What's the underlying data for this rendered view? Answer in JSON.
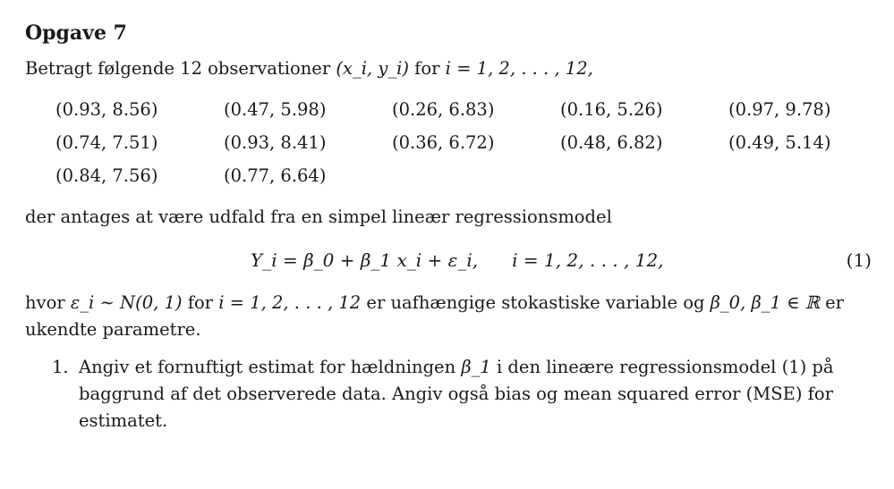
{
  "heading": "Opgave 7",
  "intro": {
    "text_before": "Betragt følgende 12 observationer ",
    "pair_notation": "(x_i, y_i)",
    "text_for": " for ",
    "index_range": "i = 1, 2, . . . , 12,"
  },
  "observations": [
    "(0.93, 8.56)",
    "(0.47, 5.98)",
    "(0.26, 6.83)",
    "(0.16, 5.26)",
    "(0.97, 9.78)",
    "(0.74, 7.51)",
    "(0.93, 8.41)",
    "(0.36, 6.72)",
    "(0.48, 6.82)",
    "(0.49, 5.14)",
    "(0.84, 7.56)",
    "(0.77, 6.64)"
  ],
  "model_intro": "der antages at være udfald fra en simpel lineær regressionsmodel",
  "equation": {
    "lhs": "Y_i = β_0 + β_1 x_i + ε_i,",
    "range": "i = 1, 2, . . . , 12,",
    "number": "(1)"
  },
  "assumptions": {
    "hvor": "hvor ",
    "epsilon_dist": "ε_i ∼ N(0, 1)",
    "for": " for ",
    "range": "i = 1, 2, . . . , 12",
    "middle": " er uafhængige stokastiske variable og ",
    "params": "β_0, β_1 ∈ ℝ",
    "end": " er ukendte parametre."
  },
  "task": {
    "number": "1.",
    "text_before": "Angiv et fornuftigt estimat for hældningen ",
    "beta": "β_1",
    "text_after": " i den lineære regressionsmodel (1) på baggrund af det observerede data. Angiv også bias og mean squared error (MSE) for estimatet."
  }
}
